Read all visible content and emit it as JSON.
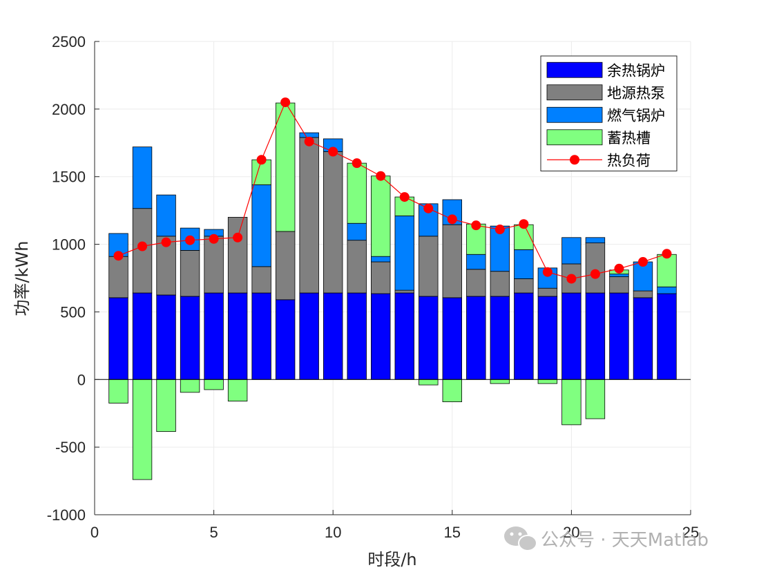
{
  "chart_data": {
    "type": "bar",
    "xlabel": "时段/h",
    "ylabel": "功率/kWh",
    "xlim": [
      0,
      25
    ],
    "ylim": [
      -1000,
      2500
    ],
    "xticks": [
      0,
      5,
      10,
      15,
      20,
      25
    ],
    "yticks": [
      -1000,
      -500,
      0,
      500,
      1000,
      1500,
      2000,
      2500
    ],
    "grid": true,
    "legend_position": "top-right",
    "x": [
      1,
      2,
      3,
      4,
      5,
      6,
      7,
      8,
      9,
      10,
      11,
      12,
      13,
      14,
      15,
      16,
      17,
      18,
      19,
      20,
      21,
      22,
      23,
      24
    ],
    "series": [
      {
        "name": "余热锅炉",
        "kind": "bar",
        "color": "#0000ff",
        "values": [
          605,
          640,
          625,
          615,
          640,
          640,
          640,
          590,
          640,
          640,
          640,
          635,
          640,
          615,
          605,
          615,
          615,
          640,
          615,
          640,
          640,
          640,
          605,
          635
        ]
      },
      {
        "name": "地源热泵",
        "kind": "bar",
        "color": "#808080",
        "values": [
          305,
          625,
          435,
          340,
          420,
          560,
          195,
          505,
          1150,
          1045,
          390,
          235,
          20,
          445,
          540,
          200,
          185,
          105,
          60,
          215,
          370,
          120,
          50,
          0
        ]
      },
      {
        "name": "燃气锅炉",
        "kind": "bar",
        "color": "#0080ff",
        "values": [
          170,
          455,
          305,
          165,
          50,
          0,
          605,
          0,
          35,
          95,
          125,
          40,
          550,
          240,
          185,
          110,
          335,
          215,
          150,
          195,
          40,
          20,
          215,
          50
        ]
      },
      {
        "name": "蓄热槽",
        "kind": "bar",
        "color": "#80ff80",
        "values": [
          -175,
          -740,
          -385,
          -95,
          -75,
          -160,
          185,
          950,
          0,
          0,
          445,
          595,
          140,
          -40,
          -165,
          225,
          -30,
          185,
          -30,
          -335,
          -290,
          30,
          0,
          240
        ]
      },
      {
        "name": "热负荷",
        "kind": "line",
        "color": "#ff0000",
        "values": [
          915,
          985,
          1015,
          1030,
          1040,
          1050,
          1625,
          2050,
          1760,
          1685,
          1600,
          1505,
          1350,
          1265,
          1185,
          1140,
          1110,
          1150,
          795,
          745,
          780,
          820,
          870,
          930
        ]
      }
    ]
  },
  "watermark": "公众号 · 天天Matlab"
}
